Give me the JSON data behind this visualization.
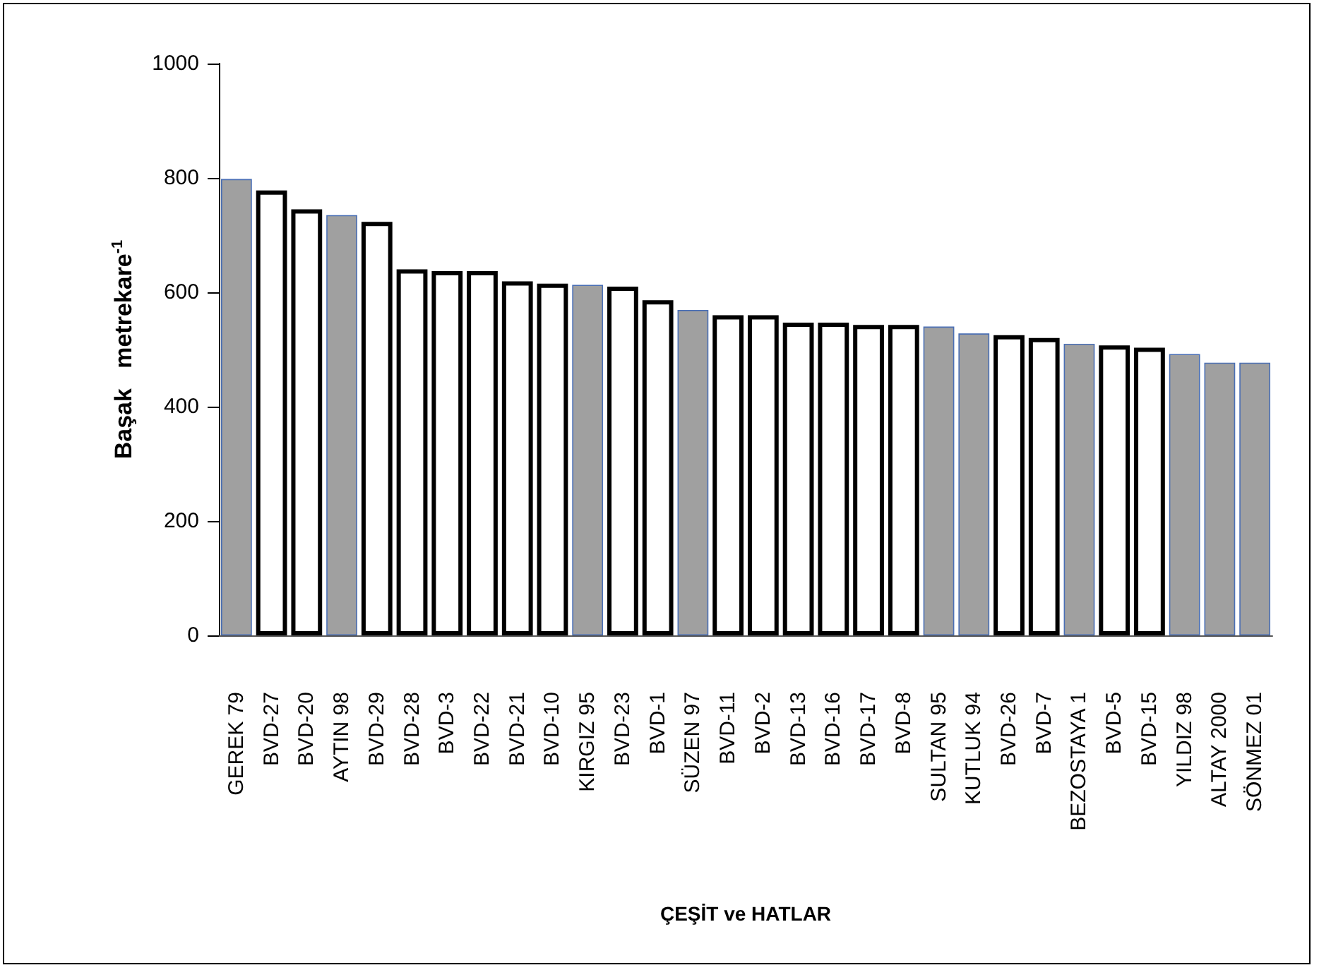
{
  "chart_data": {
    "type": "bar",
    "xlabel": "ÇEŞİT ve HATLAR",
    "ylabel": "Başak   metrekare$^{-1}$",
    "categories": [
      "GEREK 79",
      "BVD-27",
      "BVD-20",
      "AYTIN 98",
      "BVD-29",
      "BVD-28",
      "BVD-3",
      "BVD-22",
      "BVD-21",
      "BVD-10",
      "KIRGIZ 95",
      "BVD-23",
      "BVD-1",
      "SÜZEN 97",
      "BVD-11",
      "BVD-2",
      "BVD-13",
      "BVD-16",
      "BVD-17",
      "BVD-8",
      "SULTAN 95",
      "KUTLUK 94",
      "BVD-26",
      "BVD-7",
      "BEZOSTAYA 1",
      "BVD-5",
      "BVD-15",
      "YILDIZ 98",
      "ALTAY 2000",
      "SÖNMEZ 01"
    ],
    "values": [
      798,
      778,
      745,
      735,
      723,
      640,
      637,
      637,
      619,
      615,
      613,
      610,
      586,
      569,
      560,
      560,
      547,
      547,
      543,
      543,
      540,
      528,
      525,
      520,
      510,
      507,
      503,
      492,
      477,
      477
    ],
    "colors": [
      "#a0a0a0",
      "#ffffff",
      "#ffffff",
      "#a0a0a0",
      "#ffffff",
      "#ffffff",
      "#ffffff",
      "#ffffff",
      "#ffffff",
      "#ffffff",
      "#a0a0a0",
      "#ffffff",
      "#ffffff",
      "#a0a0a0",
      "#ffffff",
      "#ffffff",
      "#ffffff",
      "#ffffff",
      "#ffffff",
      "#ffffff",
      "#a0a0a0",
      "#a0a0a0",
      "#ffffff",
      "#ffffff",
      "#a0a0a0",
      "#ffffff",
      "#ffffff",
      "#a0a0a0",
      "#a0a0a0",
      "#a0a0a0"
    ],
    "ylim": [
      0,
      1000
    ],
    "yticks": [
      0,
      200,
      400,
      600,
      800,
      1000
    ],
    "grid": false
  }
}
